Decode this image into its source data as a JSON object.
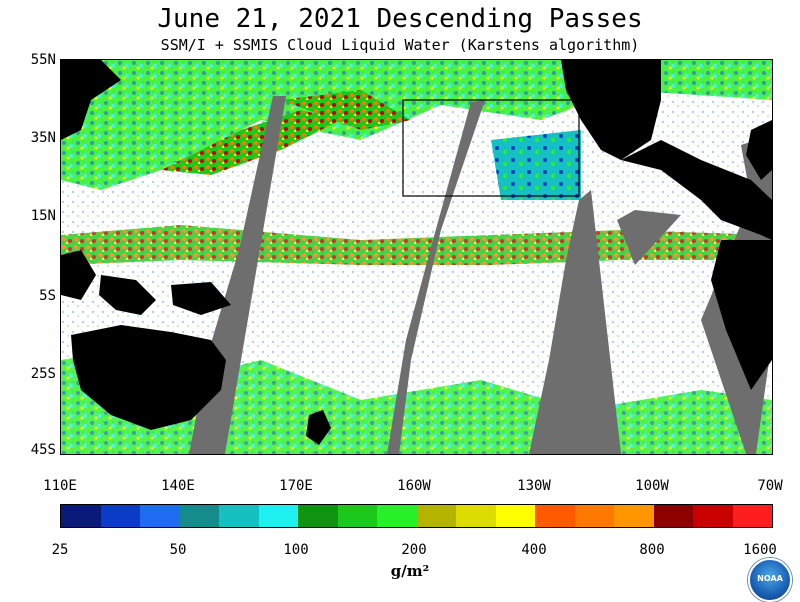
{
  "title": "June 21, 2021  Descending Passes",
  "subtitle": "SSM/I + SSMIS Cloud Liquid Water (Karstens algorithm)",
  "latitude_labels": [
    "55N",
    "35N",
    "15N",
    "5S",
    "25S",
    "45S"
  ],
  "longitude_labels": [
    "110E",
    "140E",
    "170E",
    "160W",
    "130W",
    "100W",
    "70W"
  ],
  "colorbar": {
    "tick_labels": [
      "25",
      "50",
      "100",
      "200",
      "400",
      "800",
      "1600"
    ],
    "units": "g/m²",
    "colors": [
      "#0a1a7a",
      "#0a3cc8",
      "#1e6cf0",
      "#148c8c",
      "#14c0c0",
      "#1ef0f0",
      "#109410",
      "#1cc81c",
      "#28f028",
      "#b4b400",
      "#dcdc00",
      "#ffff00",
      "#ff5a00",
      "#ff7800",
      "#ff9600",
      "#8c0000",
      "#c80000",
      "#ff1e1e"
    ]
  },
  "logo_text": "NOAA",
  "colors": {
    "land": "#000000",
    "no_data": "#6e6e6e",
    "background": "#ffffff"
  }
}
